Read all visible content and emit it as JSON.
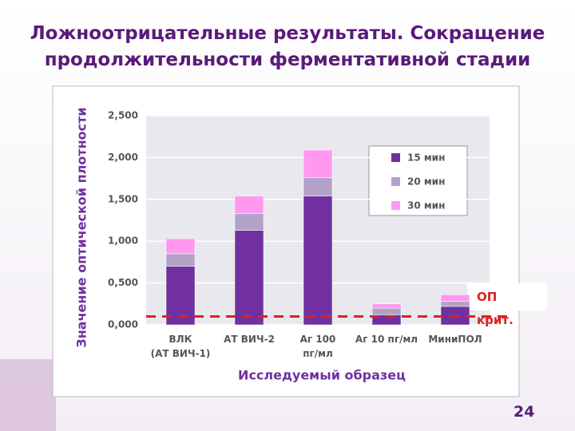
{
  "chart_data": {
    "type": "stacked_bar",
    "title": "Ложноотрицательные результаты. Сокращение продолжительности ферментативной стадии",
    "x_label": "Исследуемый образец",
    "y_label": "Значение оптической плотности",
    "categories": [
      "ВЛК\n(АТ ВИЧ-1)",
      "АТ  ВИЧ-2",
      "Аг 100\nпг/мл",
      "Аг 10 пг/мл",
      "МиниПОЛ"
    ],
    "series": [
      {
        "name": "15 мин",
        "color": "#7030a0",
        "values": [
          0.7,
          1.13,
          1.54,
          0.12,
          0.22
        ]
      },
      {
        "name": "20 мин",
        "color": "#b3a2c7",
        "values": [
          0.15,
          0.2,
          0.22,
          0.08,
          0.06
        ]
      },
      {
        "name": "30 мин",
        "color": "#ff99f0",
        "values": [
          0.18,
          0.21,
          0.33,
          0.05,
          0.08
        ]
      }
    ],
    "ylim": [
      0,
      2.5
    ],
    "yticks": [
      {
        "value": 0,
        "label": "0,000"
      },
      {
        "value": 0.5,
        "label": "0,500"
      },
      {
        "value": 1,
        "label": "1,000"
      },
      {
        "value": 1.5,
        "label": "1,500"
      },
      {
        "value": 2,
        "label": "2,000"
      },
      {
        "value": 2.5,
        "label": "2,500"
      }
    ],
    "grid": true,
    "legend": "upper right",
    "cutoff": 0.1,
    "cutoff_color": "#e02020",
    "cutoff_label": "ОП\nкрит.",
    "page_number": "24"
  }
}
